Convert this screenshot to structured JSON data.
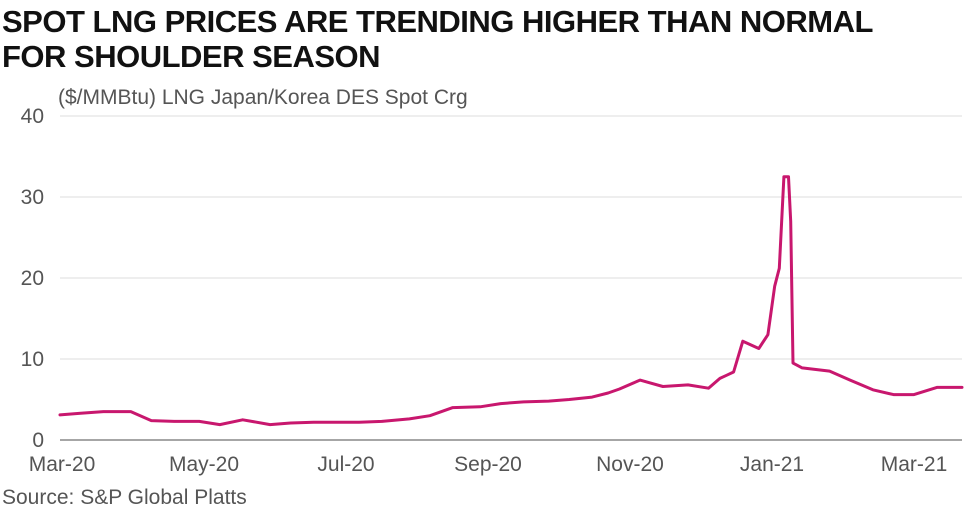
{
  "title_lines": [
    "SPOT LNG PRICES ARE TRENDING HIGHER THAN NORMAL",
    "FOR SHOULDER SEASON"
  ],
  "source": "Source: S&P Global Platts",
  "chart_data": {
    "type": "line",
    "title": "SPOT LNG PRICES ARE TRENDING HIGHER THAN NORMAL FOR SHOULDER SEASON",
    "ylabel": "($/MMBtu) LNG Japan/Korea DES Spot Crg",
    "xlabel": "",
    "ylim": [
      0,
      40
    ],
    "yticks": [
      0,
      10,
      20,
      30,
      40
    ],
    "xtick_labels": [
      "Mar-20",
      "May-20",
      "Jul-20",
      "Sep-20",
      "Nov-20",
      "Jan-21",
      "Mar-21"
    ],
    "xlim": [
      "2020-03-01",
      "2021-03-31"
    ],
    "grid": true,
    "line_color": "#c8176e",
    "series": [
      {
        "x": [
          "2020-03-01",
          "2020-03-10",
          "2020-03-20",
          "2020-04-01",
          "2020-04-10",
          "2020-04-20",
          "2020-05-01",
          "2020-05-10",
          "2020-05-20",
          "2020-06-01",
          "2020-06-10",
          "2020-06-20",
          "2020-07-01",
          "2020-07-10",
          "2020-07-20",
          "2020-08-01",
          "2020-08-10",
          "2020-08-20",
          "2020-09-01",
          "2020-09-10",
          "2020-09-20",
          "2020-10-01",
          "2020-10-10",
          "2020-10-20",
          "2020-10-27",
          "2020-11-01",
          "2020-11-10",
          "2020-11-20",
          "2020-12-01",
          "2020-12-10",
          "2020-12-15",
          "2020-12-18",
          "2020-12-21",
          "2020-12-25",
          "2021-01-01",
          "2021-01-05",
          "2021-01-08",
          "2021-01-10",
          "2021-01-12",
          "2021-01-14",
          "2021-01-15",
          "2021-01-16",
          "2021-01-20",
          "2021-02-01",
          "2021-02-10",
          "2021-02-20",
          "2021-03-01",
          "2021-03-10",
          "2021-03-20",
          "2021-03-31"
        ],
        "y": [
          3.1,
          3.3,
          3.5,
          3.5,
          2.4,
          2.3,
          2.3,
          1.9,
          2.5,
          1.9,
          2.1,
          2.2,
          2.2,
          2.2,
          2.3,
          2.6,
          3.0,
          4.0,
          4.1,
          4.5,
          4.7,
          4.8,
          5.0,
          5.3,
          5.8,
          6.3,
          7.4,
          6.6,
          6.8,
          6.4,
          7.6,
          8.0,
          8.4,
          12.2,
          11.3,
          13.0,
          19.0,
          21.2,
          32.5,
          32.5,
          27.0,
          9.5,
          8.9,
          8.5,
          7.4,
          6.2,
          5.6,
          5.6,
          6.5,
          6.5
        ]
      }
    ]
  }
}
